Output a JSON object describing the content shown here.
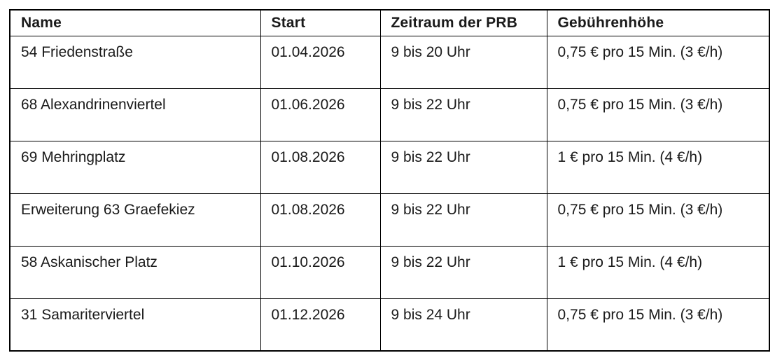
{
  "table": {
    "columns": [
      {
        "key": "name",
        "label": "Name"
      },
      {
        "key": "start",
        "label": "Start"
      },
      {
        "key": "period",
        "label": "Zeitraum der PRB"
      },
      {
        "key": "fee",
        "label": "Gebührenhöhe"
      }
    ],
    "rows": [
      {
        "name": "54 Friedenstraße",
        "start": "01.04.2026",
        "period": "9 bis 20 Uhr",
        "fee": "0,75 € pro 15 Min. (3 €/h)"
      },
      {
        "name": "68 Alexandrinenviertel",
        "start": "01.06.2026",
        "period": "9 bis 22 Uhr",
        "fee": "0,75 € pro 15 Min. (3 €/h)"
      },
      {
        "name": "69 Mehringplatz",
        "start": "01.08.2026",
        "period": "9 bis 22 Uhr",
        "fee": "1 € pro 15 Min. (4 €/h)"
      },
      {
        "name": "Erweiterung 63 Graefekiez",
        "start": "01.08.2026",
        "period": "9 bis 22 Uhr",
        "fee": "0,75 € pro 15 Min. (3 €/h)"
      },
      {
        "name": "58 Askanischer Platz",
        "start": "01.10.2026",
        "period": "9 bis 22 Uhr",
        "fee": "1 € pro 15 Min. (4 €/h)"
      },
      {
        "name": "31 Samariterviertel",
        "start": "01.12.2026",
        "period": "9 bis 24 Uhr",
        "fee": "0,75 € pro 15 Min. (3 €/h)"
      }
    ],
    "colors": {
      "border": "#000000",
      "text": "#1a1a1a",
      "background": "#ffffff"
    }
  }
}
